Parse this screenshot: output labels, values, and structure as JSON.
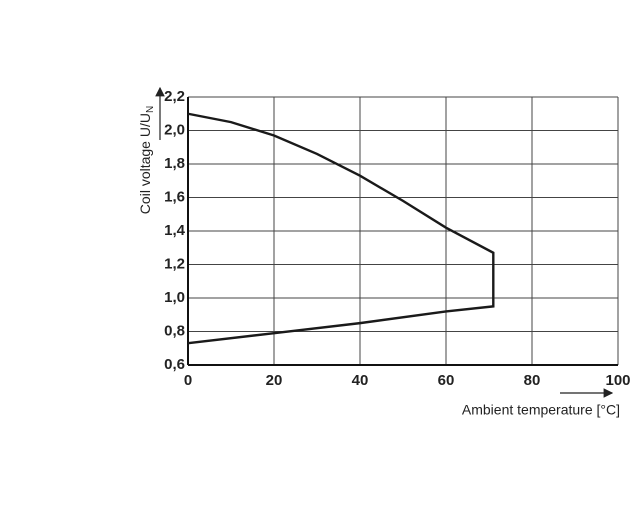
{
  "chart_data": {
    "type": "line",
    "xlabel": "Ambient temperature [°C]",
    "ylabel": {
      "text": "Coil voltage U/U",
      "subscript": "N"
    },
    "series": [
      {
        "color": "#1a1a1a",
        "x": [
          0,
          10,
          20,
          30,
          40,
          50,
          60,
          71,
          71,
          60,
          40,
          20,
          0
        ],
        "values": [
          2.1,
          2.05,
          1.97,
          1.86,
          1.73,
          1.58,
          1.42,
          1.27,
          0.95,
          0.92,
          0.85,
          0.79,
          0.73
        ]
      }
    ],
    "xlim": [
      0,
      100
    ],
    "xticks": [
      0,
      20,
      40,
      60,
      80,
      100
    ],
    "ylim": [
      0.6,
      2.2
    ],
    "yticks": [
      {
        "value": 0.6,
        "label": "0,6"
      },
      {
        "value": 0.8,
        "label": "0,8"
      },
      {
        "value": 1.0,
        "label": "1,0"
      },
      {
        "value": 1.2,
        "label": "1,2"
      },
      {
        "value": 1.4,
        "label": "1,4"
      },
      {
        "value": 1.6,
        "label": "1,6"
      },
      {
        "value": 1.8,
        "label": "1,8"
      },
      {
        "value": 2.0,
        "label": "2,0"
      },
      {
        "value": 2.2,
        "label": "2,2"
      }
    ],
    "grid": true
  }
}
